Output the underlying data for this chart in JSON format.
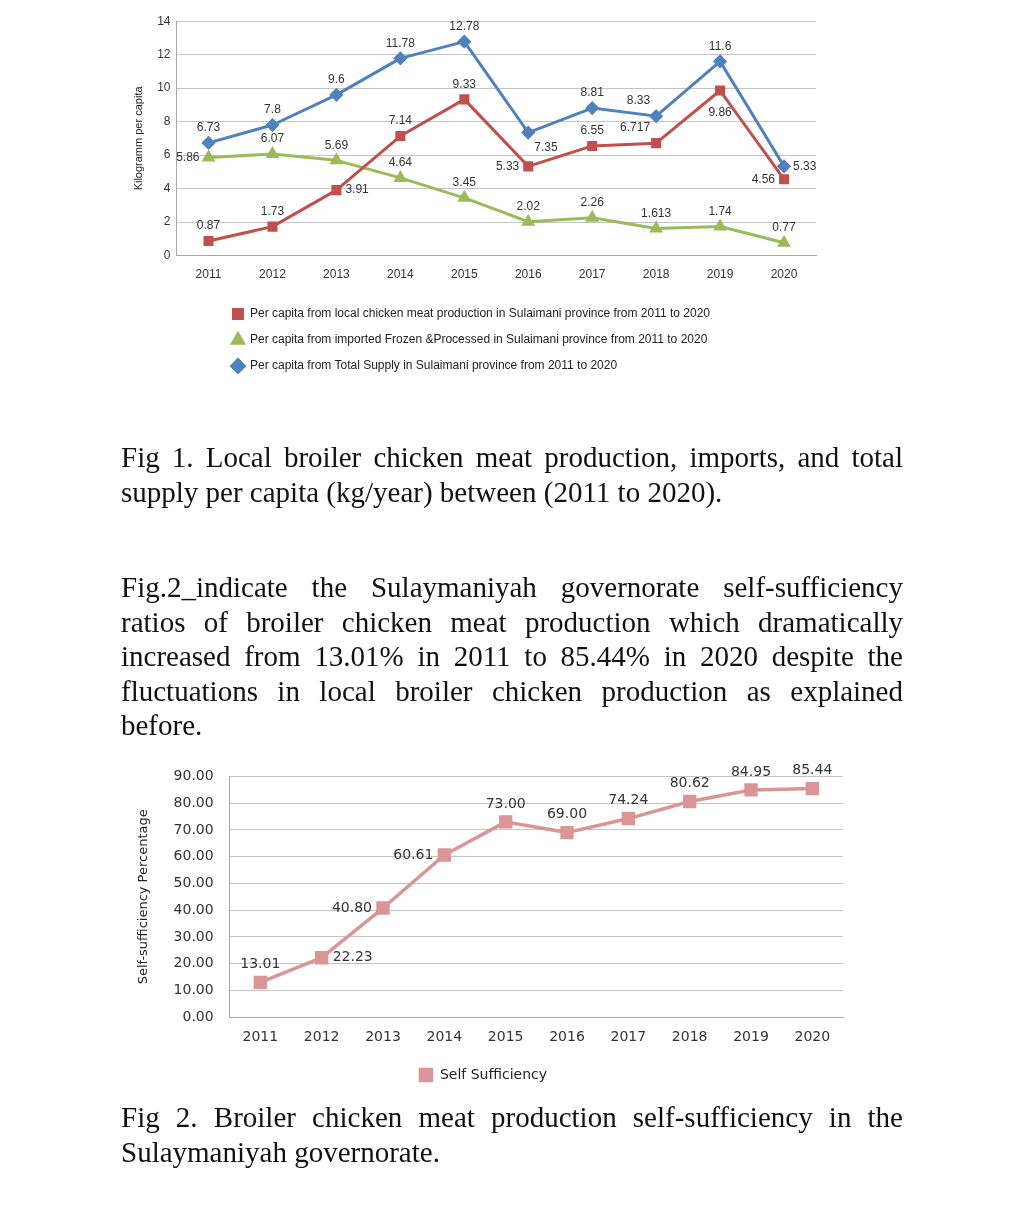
{
  "chart_data": [
    {
      "type": "line",
      "ylabel": "Kilogramm per capita",
      "categories": [
        "2011",
        "2012",
        "2013",
        "2014",
        "2015",
        "2016",
        "2017",
        "2018",
        "2019",
        "2020"
      ],
      "series": [
        {
          "name": "Per capita from local chicken meat production in Sulaimani province from 2011 to 2020",
          "color": "#c0504d",
          "marker": "square",
          "values": [
            0.87,
            1.73,
            3.91,
            7.14,
            9.33,
            5.33,
            6.55,
            6.717,
            9.86,
            4.56
          ]
        },
        {
          "name": "Per capita from imported Frozen &Processed in Sulaimani province from 2011 to 2020",
          "color": "#9bbb59",
          "marker": "triangle",
          "values": [
            5.86,
            6.07,
            5.69,
            4.64,
            3.45,
            2.02,
            2.26,
            1.613,
            1.74,
            0.77
          ]
        },
        {
          "name": "Per capita from Total Supply in Sulaimani province from 2011 to 2020",
          "color": "#4f81bd",
          "marker": "diamond",
          "values": [
            6.73,
            7.8,
            9.6,
            11.78,
            12.78,
            7.35,
            8.81,
            8.33,
            11.6,
            5.33
          ]
        }
      ],
      "ylim": [
        0,
        14
      ],
      "yticks": [
        0,
        2,
        4,
        6,
        8,
        10,
        12,
        14
      ],
      "grid": "y",
      "legend": "bottom",
      "data_labels": true,
      "annotations": [
        "Fig 1. Local broiler chicken meat production, imports, and total supply per capita (kg/year) between (2011 to 2020).",
        "Fig.2_indicate the Sulaymaniyah governorate self-sufficiency ratios of broiler chicken meat production which dramatically increased from 13.01% in 2011 to 85.44% in 2020 despite the fluctuations in local broiler chicken production as explained before."
      ]
    },
    {
      "type": "line",
      "ylabel": "Self-sufficiency Percentage",
      "categories": [
        "2011",
        "2012",
        "2013",
        "2014",
        "2015",
        "2016",
        "2017",
        "2018",
        "2019",
        "2020"
      ],
      "series": [
        {
          "name": "Self Sufficiency",
          "color": "#d99694",
          "values": [
            13.01,
            22.23,
            40.8,
            60.61,
            73,
            69,
            74.24,
            80.62,
            84.95,
            85.44
          ],
          "value_labels": [
            "13.01",
            "22.23",
            "40.80",
            "60.61",
            "73.00",
            "69.00",
            "74.24",
            "80.62",
            "84.95",
            "85.44"
          ]
        }
      ],
      "marker": "square",
      "ylim": [
        0,
        90
      ],
      "yticks": [
        {
          "value": 0,
          "label": "0.00"
        },
        {
          "value": 10,
          "label": "10.00"
        },
        {
          "value": 20,
          "label": "20.00"
        },
        {
          "value": 30,
          "label": "30.00"
        },
        {
          "value": 40,
          "label": "40.00"
        },
        {
          "value": 50,
          "label": "50.00"
        },
        {
          "value": 60,
          "label": "60.00"
        },
        {
          "value": 70,
          "label": "70.00"
        },
        {
          "value": 80,
          "label": "80.00"
        },
        {
          "value": 90,
          "label": "90.00"
        }
      ],
      "grid": "y",
      "legend": "bottom",
      "annotations": [
        "Fig 2. Broiler chicken meat production self-sufficiency in the Sulaymaniyah governorate."
      ]
    }
  ]
}
